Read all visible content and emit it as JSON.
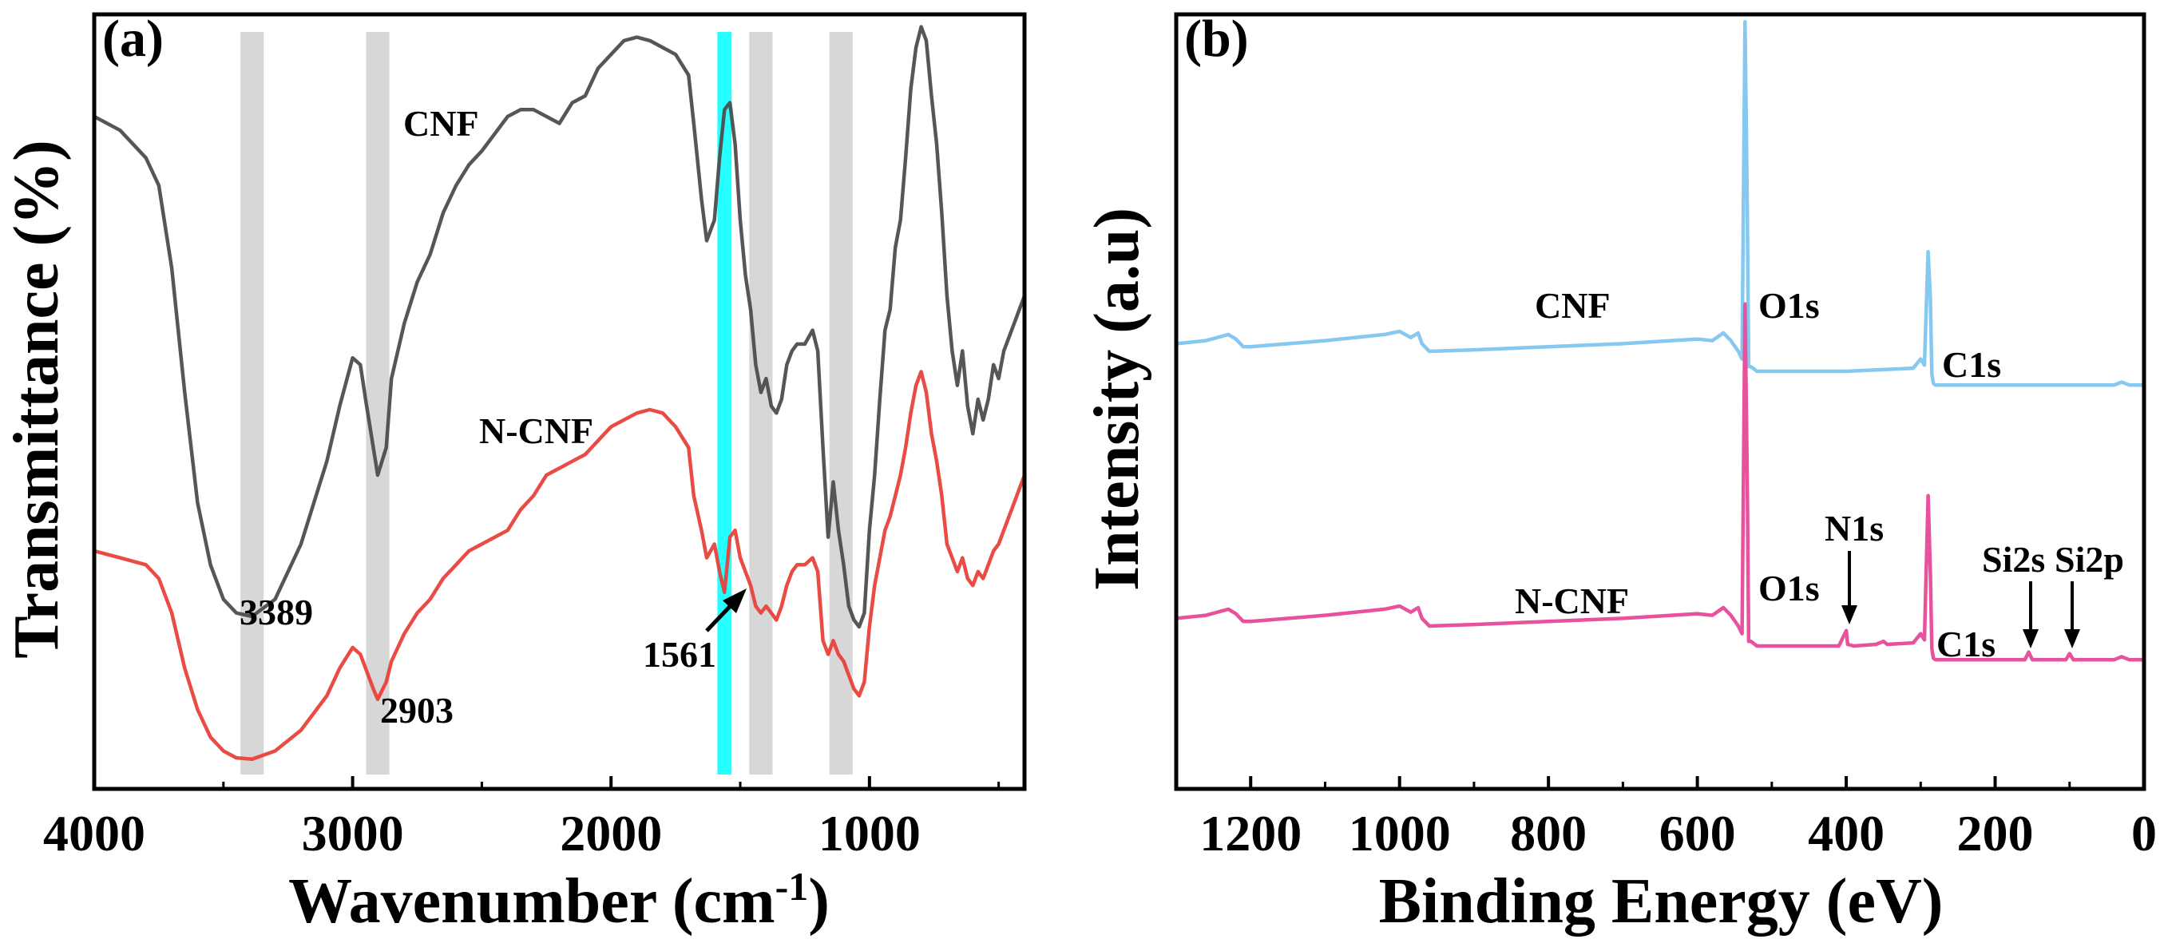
{
  "chart_data": [
    {
      "panel": "(a)",
      "type": "line",
      "xlabel": "Wavenumber (cm",
      "xlabel_sup": "-1",
      "xlabel_tail": ")",
      "ylabel": "Transmittance (%)",
      "xlim": [
        4000,
        400
      ],
      "x_reversed": true,
      "y_ticks_shown": false,
      "xticks": [
        4000,
        3000,
        2000,
        1000
      ],
      "xtick_labels": [
        "4000",
        "3000",
        "2000",
        "1000"
      ],
      "highlight_bands": [
        {
          "center": 3389,
          "width": 90,
          "color": "#d3d3d3"
        },
        {
          "center": 2903,
          "width": 90,
          "color": "#d3d3d3"
        },
        {
          "center": 1561,
          "width": 55,
          "color": "#00ffff"
        },
        {
          "center": 1420,
          "width": 90,
          "color": "#d3d3d3"
        },
        {
          "center": 1110,
          "width": 90,
          "color": "#d3d3d3"
        }
      ],
      "series": [
        {
          "name": "CNF",
          "label": "CNF",
          "color": "#4d4d4d",
          "x": [
            4000,
            3900,
            3800,
            3750,
            3700,
            3650,
            3600,
            3550,
            3500,
            3450,
            3389,
            3300,
            3200,
            3100,
            3050,
            3000,
            2970,
            2950,
            2920,
            2903,
            2870,
            2850,
            2800,
            2750,
            2700,
            2650,
            2600,
            2550,
            2500,
            2400,
            2350,
            2300,
            2250,
            2200,
            2150,
            2100,
            2050,
            2000,
            1950,
            1900,
            1850,
            1800,
            1750,
            1700,
            1680,
            1650,
            1630,
            1600,
            1580,
            1561,
            1540,
            1520,
            1500,
            1480,
            1460,
            1440,
            1420,
            1400,
            1380,
            1360,
            1340,
            1320,
            1300,
            1280,
            1250,
            1220,
            1200,
            1180,
            1160,
            1140,
            1120,
            1100,
            1080,
            1060,
            1040,
            1020,
            1000,
            980,
            960,
            940,
            920,
            900,
            880,
            860,
            840,
            820,
            800,
            780,
            760,
            740,
            720,
            700,
            680,
            660,
            640,
            620,
            600,
            580,
            560,
            540,
            520,
            500,
            480,
            460,
            440,
            420,
            400
          ],
          "y": [
            86,
            84,
            80,
            76,
            64,
            46,
            30,
            21,
            16,
            14,
            13.5,
            16,
            24,
            36,
            44,
            51,
            50,
            45,
            38,
            34,
            38,
            48,
            56,
            62,
            66,
            72,
            76,
            79,
            81,
            86,
            87,
            87,
            86,
            85,
            88,
            89,
            93,
            95,
            97,
            97.5,
            97,
            96,
            95,
            92,
            85,
            74,
            68,
            71,
            80,
            87,
            88,
            82,
            71,
            63,
            58,
            50,
            46,
            48,
            44,
            43,
            45,
            50,
            52,
            53,
            53,
            55,
            52,
            38,
            25,
            33,
            26,
            21,
            15,
            13,
            12,
            14,
            26,
            34,
            45,
            55,
            58,
            67,
            71,
            80,
            90,
            96,
            99,
            97,
            89,
            82,
            72,
            60,
            52,
            47,
            52,
            44,
            40,
            45,
            42,
            45,
            50,
            48,
            52,
            54,
            56,
            58,
            60
          ]
        },
        {
          "name": "N-CNF",
          "label": "N-CNF",
          "color": "#e8413b",
          "x": [
            4000,
            3900,
            3800,
            3750,
            3700,
            3650,
            3600,
            3550,
            3500,
            3450,
            3389,
            3300,
            3200,
            3100,
            3050,
            3000,
            2970,
            2950,
            2920,
            2903,
            2870,
            2850,
            2800,
            2750,
            2700,
            2650,
            2600,
            2550,
            2500,
            2400,
            2350,
            2300,
            2250,
            2200,
            2150,
            2100,
            2050,
            2000,
            1950,
            1900,
            1850,
            1800,
            1750,
            1700,
            1680,
            1650,
            1630,
            1600,
            1580,
            1561,
            1540,
            1520,
            1500,
            1480,
            1460,
            1440,
            1420,
            1400,
            1380,
            1360,
            1340,
            1320,
            1300,
            1280,
            1250,
            1220,
            1200,
            1180,
            1160,
            1140,
            1120,
            1100,
            1080,
            1060,
            1040,
            1020,
            1000,
            980,
            960,
            940,
            920,
            900,
            880,
            860,
            840,
            820,
            800,
            780,
            760,
            740,
            720,
            700,
            680,
            660,
            640,
            620,
            600,
            580,
            560,
            540,
            520,
            500,
            480,
            460,
            440,
            420,
            400
          ],
          "y": [
            23,
            22,
            21,
            19,
            14,
            6,
            0,
            -4,
            -6,
            -7,
            -7.2,
            -6,
            -3,
            2,
            6,
            9,
            8,
            6,
            3,
            1.5,
            4,
            7,
            11,
            14,
            16,
            19,
            21,
            23,
            24,
            26,
            29,
            31,
            34,
            35,
            36,
            37,
            39,
            41,
            42,
            43,
            43.5,
            43,
            41,
            38,
            31,
            26,
            22,
            24,
            20,
            17,
            25,
            26,
            22,
            20,
            18,
            15,
            14,
            15,
            14,
            13,
            15,
            18,
            20,
            21,
            21,
            22,
            20,
            10,
            8,
            10,
            8,
            7,
            5,
            3,
            2,
            4,
            12,
            18,
            22,
            26,
            28,
            31,
            34,
            38,
            43,
            47,
            49,
            46,
            40,
            36,
            31,
            24,
            22,
            20,
            22,
            19,
            18,
            20,
            19,
            21,
            23,
            24,
            26,
            28,
            30,
            32,
            34
          ]
        }
      ],
      "annotations": [
        {
          "text": "3389",
          "x": 3389
        },
        {
          "text": "2903",
          "x": 2903
        },
        {
          "text": "1561",
          "x": 1561,
          "arrow": true
        }
      ]
    },
    {
      "panel": "(b)",
      "type": "line",
      "xlabel": "Binding Energy (eV)",
      "ylabel": "Intensity (a.u)",
      "xlim": [
        1300,
        0
      ],
      "x_reversed": true,
      "y_ticks_shown": false,
      "xticks": [
        1200,
        1000,
        800,
        600,
        400,
        200,
        0
      ],
      "xtick_labels": [
        "1200",
        "1000",
        "800",
        "600",
        "400",
        "200",
        "0"
      ],
      "series": [
        {
          "name": "CNF",
          "label": "CNF",
          "color": "#86c8f0",
          "x": [
            1300,
            1260,
            1230,
            1220,
            1210,
            1200,
            1100,
            1020,
            1000,
            985,
            975,
            970,
            960,
            900,
            800,
            700,
            600,
            580,
            565,
            555,
            545,
            540,
            536,
            533,
            531,
            528,
            520,
            400,
            310,
            300,
            295,
            290,
            287,
            285,
            283,
            280,
            270,
            200,
            100,
            40,
            30,
            25,
            20,
            0
          ],
          "y": [
            30,
            32,
            36,
            33,
            28,
            28,
            32,
            36,
            38,
            34,
            37,
            30,
            25,
            26,
            28,
            30,
            33,
            32,
            37,
            32,
            25,
            20,
            240,
            120,
            15,
            15,
            12,
            12,
            14,
            20,
            16,
            90,
            60,
            10,
            4,
            3,
            3,
            3,
            3,
            3,
            5,
            4,
            3,
            3
          ]
        },
        {
          "name": "N-CNF",
          "label": "N-CNF",
          "color": "#e8519c",
          "x": [
            1300,
            1260,
            1230,
            1220,
            1210,
            1200,
            1100,
            1020,
            1000,
            985,
            975,
            970,
            960,
            900,
            800,
            700,
            600,
            580,
            565,
            555,
            545,
            540,
            536,
            533,
            531,
            528,
            520,
            410,
            400,
            398,
            390,
            360,
            350,
            345,
            310,
            300,
            295,
            290,
            287,
            285,
            283,
            280,
            270,
            160,
            155,
            150,
            105,
            100,
            95,
            40,
            30,
            25,
            20,
            0
          ],
          "y": [
            30,
            32,
            36,
            33,
            28,
            28,
            32,
            36,
            38,
            34,
            37,
            30,
            25,
            26,
            28,
            30,
            33,
            32,
            37,
            32,
            25,
            20,
            235,
            120,
            15,
            15,
            12,
            12,
            22,
            13,
            12,
            13,
            15,
            13,
            14,
            20,
            16,
            110,
            60,
            10,
            4,
            3,
            3,
            3,
            8,
            3,
            3,
            7,
            3,
            3,
            5,
            4,
            3,
            3
          ]
        }
      ],
      "annotations": [
        {
          "text": "O1s",
          "series": "CNF"
        },
        {
          "text": "C1s",
          "series": "CNF"
        },
        {
          "text": "O1s",
          "series": "N-CNF"
        },
        {
          "text": "C1s",
          "series": "N-CNF"
        },
        {
          "text": "N1s",
          "x": 400,
          "arrow": true
        },
        {
          "text": "Si2s",
          "x": 155,
          "arrow": true
        },
        {
          "text": "Si2p",
          "x": 100,
          "arrow": true
        }
      ]
    }
  ]
}
